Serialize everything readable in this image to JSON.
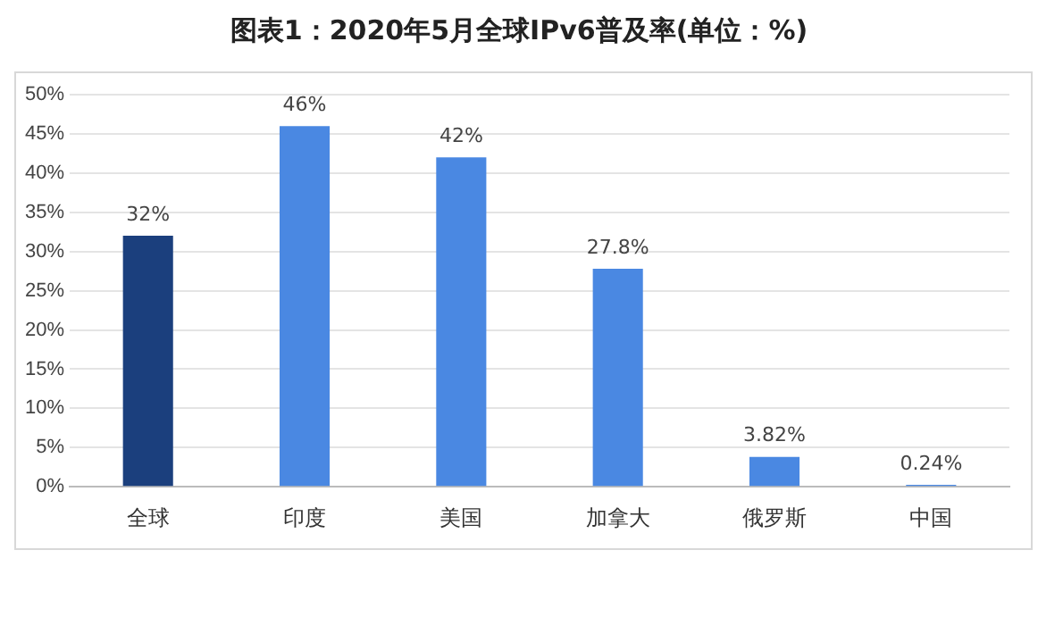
{
  "chart_data": {
    "type": "bar",
    "title": "图表1：2020年5月全球IPv6普及率(单位：%)",
    "categories": [
      "全球",
      "印度",
      "美国",
      "加拿大",
      "俄罗斯",
      "中国"
    ],
    "values": [
      32,
      46,
      42,
      27.8,
      3.82,
      0.24
    ],
    "colors": [
      "#1b3f7d",
      "#4a88e2",
      "#4a88e2",
      "#4a88e2",
      "#4a88e2",
      "#4a88e2"
    ],
    "value_labels": [
      "32%",
      "46%",
      "42%",
      "27.8%",
      "3.82%",
      "0.24%"
    ],
    "ylim": [
      0,
      50
    ],
    "yticks": [
      {
        "value": 0,
        "label": "0%"
      },
      {
        "value": 5,
        "label": "5%"
      },
      {
        "value": 10,
        "label": "10%"
      },
      {
        "value": 15,
        "label": "15%"
      },
      {
        "value": 20,
        "label": "20%"
      },
      {
        "value": 25,
        "label": "25%"
      },
      {
        "value": 30,
        "label": "30%"
      },
      {
        "value": 35,
        "label": "35%"
      },
      {
        "value": 40,
        "label": "40%"
      },
      {
        "value": 45,
        "label": "45%"
      },
      {
        "value": 50,
        "label": "50%"
      }
    ],
    "grid": "y",
    "legend": false
  }
}
